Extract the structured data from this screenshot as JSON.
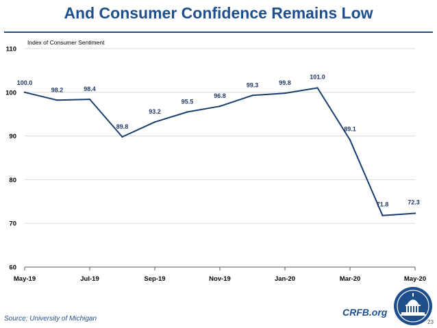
{
  "slide": {
    "title": "And Consumer Confidence Remains Low",
    "source": "Source: University of Michigan",
    "brand": "CRFB.org",
    "page_number": "23"
  },
  "colors": {
    "title": "#1f4e8c",
    "line": "#183d6b",
    "label": "#1f3864",
    "grid": "#d9d9d9",
    "axis": "#595959"
  },
  "icons": {
    "seal": "capitol-seal-icon"
  },
  "chart_data": {
    "type": "line",
    "title": "",
    "ylabel": "Index of Consumer Sentiment",
    "xlabel": "",
    "ylim": [
      60,
      110
    ],
    "yticks": [
      60,
      70,
      80,
      90,
      100,
      110
    ],
    "months": [
      "May-19",
      "Jun-19",
      "Jul-19",
      "Aug-19",
      "Sep-19",
      "Oct-19",
      "Nov-19",
      "Dec-19",
      "Jan-20",
      "Feb-20",
      "Mar-20",
      "Apr-20",
      "May-20"
    ],
    "xtick_labels": [
      "May-19",
      "Jul-19",
      "Sep-19",
      "Nov-19",
      "Jan-20",
      "Mar-20",
      "May-20"
    ],
    "series": [
      {
        "name": "Index of Consumer Sentiment",
        "values": [
          100.0,
          98.2,
          98.4,
          89.8,
          93.2,
          95.5,
          96.8,
          99.3,
          99.8,
          101.0,
          89.1,
          71.8,
          72.3
        ],
        "labels": [
          "100.0",
          "98.2",
          "98.4",
          "89.8",
          "93.2",
          "95.5",
          "96.8",
          "99.3",
          "99.8",
          "101.0",
          "89.1",
          "71.8",
          "72.3"
        ]
      }
    ],
    "grid": true
  }
}
